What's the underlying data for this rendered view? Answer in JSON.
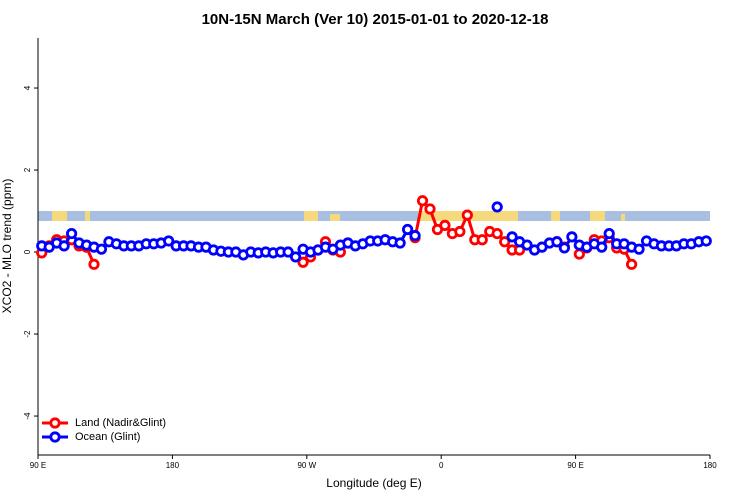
{
  "chart_data": {
    "type": "line",
    "title": "10N-15N March (Ver 10)   2015-01-01 to 2020-12-18",
    "xlabel": "Longitude (deg E)",
    "ylabel": "XCO2 - MLO trend (ppm)",
    "x": [
      92.5,
      97.5,
      102.5,
      107.5,
      112.5,
      117.5,
      122.5,
      127.5,
      132.5,
      137.5,
      142.5,
      147.5,
      152.5,
      157.5,
      162.5,
      167.5,
      172.5,
      177.5,
      182.5,
      187.5,
      192.5,
      197.5,
      202.5,
      207.5,
      212.5,
      217.5,
      222.5,
      227.5,
      232.5,
      237.5,
      242.5,
      247.5,
      252.5,
      257.5,
      262.5,
      267.5,
      272.5,
      277.5,
      282.5,
      287.5,
      292.5,
      297.5,
      302.5,
      307.5,
      312.5,
      317.5,
      322.5,
      327.5,
      332.5,
      337.5,
      342.5,
      347.5,
      352.5,
      357.5,
      362.5,
      367.5,
      372.5,
      377.5,
      382.5,
      387.5,
      392.5,
      397.5,
      402.5,
      407.5,
      412.5,
      417.5,
      422.5,
      427.5,
      432.5,
      437.5,
      442.5,
      447.5,
      452.5,
      457.5,
      462.5,
      467.5,
      472.5,
      477.5,
      482.5,
      487.5,
      492.5,
      497.5,
      502.5,
      507.5,
      512.5,
      517.5,
      522.5,
      527.5,
      532.5,
      537.5
    ],
    "series": [
      {
        "name": "Land (Nadir&Glint)",
        "color": "#ff0000",
        "values": [
          -0.02,
          0.15,
          0.3,
          0.27,
          0.3,
          0.15,
          0.12,
          -0.3,
          null,
          null,
          null,
          null,
          null,
          null,
          null,
          null,
          null,
          null,
          null,
          null,
          null,
          null,
          null,
          null,
          null,
          null,
          null,
          null,
          null,
          null,
          null,
          null,
          null,
          null,
          null,
          -0.25,
          -0.12,
          0.05,
          0.25,
          0.05,
          0,
          0.22,
          null,
          null,
          null,
          null,
          null,
          null,
          null,
          null,
          0.35,
          1.25,
          1.05,
          0.55,
          0.65,
          0.45,
          0.5,
          0.9,
          0.3,
          0.3,
          0.5,
          0.45,
          0.25,
          0.05,
          0.05,
          null,
          null,
          null,
          null,
          0.25,
          0.12,
          null,
          -0.05,
          0.1,
          0.3,
          0.27,
          0.35,
          0.1,
          0.07,
          -0.3,
          null,
          null,
          null,
          null,
          null,
          null,
          null,
          null,
          null,
          null
        ]
      },
      {
        "name": "Ocean (Glint)",
        "color": "#0000ff",
        "values": [
          0.15,
          0.12,
          0.22,
          0.15,
          0.45,
          0.22,
          0.17,
          0.12,
          0.07,
          0.25,
          0.2,
          0.15,
          0.15,
          0.15,
          0.2,
          0.2,
          0.22,
          0.27,
          0.15,
          0.15,
          0.15,
          0.12,
          0.12,
          0.05,
          0.02,
          0,
          0,
          -0.07,
          0,
          -0.02,
          0,
          -0.02,
          0,
          0,
          -0.12,
          0.07,
          0,
          0.05,
          0.12,
          0.07,
          0.17,
          0.22,
          0.15,
          0.2,
          0.27,
          0.27,
          0.3,
          0.25,
          0.22,
          0.55,
          0.4,
          null,
          null,
          null,
          null,
          null,
          null,
          null,
          null,
          null,
          null,
          1.1,
          null,
          0.37,
          0.25,
          0.17,
          0.05,
          0.12,
          0.22,
          0.25,
          0.1,
          0.37,
          0.17,
          0.12,
          0.2,
          0.12,
          0.45,
          0.2,
          0.2,
          0.12,
          0.07,
          0.27,
          0.2,
          0.15,
          0.15,
          0.15,
          0.2,
          0.2,
          0.25,
          0.27
        ]
      }
    ],
    "xlim": [
      90,
      540
    ],
    "xticks": [
      {
        "value": 90,
        "label": "90 E"
      },
      180,
      {
        "value": 270,
        "label": "90 W"
      },
      {
        "value": 360,
        "label": "0"
      },
      {
        "value": 450,
        "label": "90 E"
      },
      {
        "value": 540,
        "label": "180"
      }
    ],
    "ylim": [
      -4.95,
      5.22
    ],
    "yticks": [
      -4,
      -2,
      0,
      2,
      4
    ],
    "legend": "bottom-left"
  }
}
